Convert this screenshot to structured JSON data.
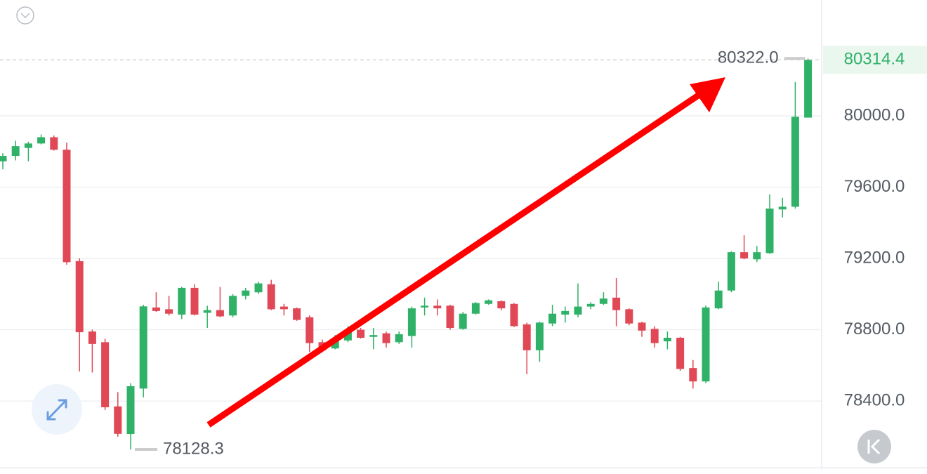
{
  "chart_data": {
    "type": "candlestick",
    "up_color": "#2fb167",
    "down_color": "#e04856",
    "ylim": [
      78030,
      80650
    ],
    "yticks": [
      {
        "value": 78400,
        "label": "78400.0"
      },
      {
        "value": 78800,
        "label": "78800.0"
      },
      {
        "value": 79200,
        "label": "79200.0"
      },
      {
        "value": 79600,
        "label": "79600.0"
      },
      {
        "value": 80000,
        "label": "80000.0"
      }
    ],
    "grid": true,
    "open": [
      79745,
      79775,
      79820,
      79845,
      79880,
      79810,
      79185,
      78790,
      78730,
      78370,
      78215,
      78470,
      78925,
      78915,
      78885,
      79035,
      78895,
      78910,
      78880,
      78990,
      79010,
      79055,
      78930,
      78920,
      78870,
      78730,
      78695,
      78740,
      78800,
      78760,
      78780,
      78730,
      78765,
      78925,
      78935,
      78935,
      78805,
      78890,
      78945,
      78960,
      78945,
      78830,
      78685,
      78835,
      78885,
      78885,
      78930,
      78945,
      78980,
      78915,
      78840,
      78805,
      78735,
      78755,
      78585,
      78510,
      78920,
      79020,
      79235,
      79195,
      79230,
      79475,
      79490,
      79990
    ],
    "high": [
      79790,
      79860,
      79855,
      79895,
      79890,
      79850,
      79200,
      78800,
      78750,
      78450,
      78500,
      78940,
      79010,
      78990,
      79040,
      79055,
      78935,
      79040,
      79000,
      79035,
      79070,
      79080,
      78945,
      78925,
      78880,
      78745,
      78770,
      78820,
      78810,
      78810,
      78790,
      78790,
      78930,
      78980,
      78970,
      78940,
      78900,
      78955,
      78970,
      78965,
      78950,
      78840,
      78845,
      78940,
      78930,
      79060,
      78955,
      79010,
      79090,
      78920,
      78845,
      78820,
      78790,
      78760,
      78630,
      78935,
      79070,
      79240,
      79330,
      79270,
      79560,
      79540,
      80190,
      80322.0
    ],
    "low": [
      79700,
      79750,
      79745,
      79840,
      79805,
      79165,
      78566,
      78560,
      78350,
      78200,
      78128.3,
      78420,
      78900,
      78880,
      78860,
      78880,
      78810,
      78870,
      78870,
      78970,
      79000,
      78910,
      78880,
      78850,
      78675,
      78675,
      78690,
      78730,
      78750,
      78690,
      78700,
      78720,
      78700,
      78880,
      78880,
      78800,
      78800,
      78885,
      78940,
      78910,
      78815,
      78550,
      78620,
      78820,
      78840,
      78870,
      78915,
      78940,
      78820,
      78825,
      78760,
      78700,
      78690,
      78570,
      78470,
      78500,
      78915,
      79010,
      79195,
      79180,
      79225,
      79430,
      79480,
      79990
    ],
    "close": [
      79775,
      79830,
      79845,
      79880,
      79810,
      79179,
      78786,
      78720,
      78365,
      78216,
      78483,
      78931,
      78905,
      78890,
      79035,
      78885,
      78910,
      78875,
      78990,
      79020,
      79060,
      78915,
      78915,
      78855,
      78725,
      78685,
      78740,
      78800,
      78755,
      78770,
      78725,
      78775,
      78920,
      78935,
      78920,
      78810,
      78890,
      78950,
      78965,
      78920,
      78820,
      78685,
      78840,
      78890,
      78905,
      78930,
      78945,
      78975,
      78910,
      78835,
      78795,
      78725,
      78755,
      78580,
      78510,
      78925,
      79020,
      79235,
      79200,
      79235,
      79480,
      79490,
      79995,
      80314.4
    ],
    "annotations": [
      {
        "value": 80322.0,
        "label": "80322.0",
        "index": 63
      },
      {
        "value": 78128.3,
        "label": "78128.3",
        "index": 10
      }
    ],
    "last_price": {
      "value": 80314.4,
      "label": "80314.4"
    }
  }
}
